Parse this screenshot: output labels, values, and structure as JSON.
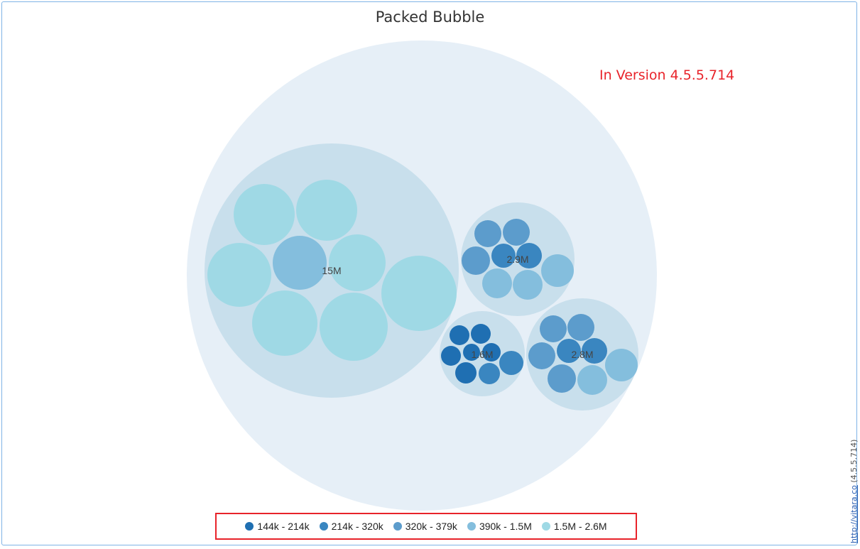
{
  "chart_data": {
    "type": "packed-bubble",
    "title": "Packed Bubble",
    "groups": [
      {
        "label": "15M",
        "members": [
          {
            "color_range": "1.5M - 2.6M"
          },
          {
            "color_range": "1.5M - 2.6M"
          },
          {
            "color_range": "1.5M - 2.6M"
          },
          {
            "color_range": "390k - 1.5M"
          },
          {
            "color_range": "1.5M - 2.6M"
          },
          {
            "color_range": "1.5M - 2.6M"
          },
          {
            "color_range": "1.5M - 2.6M"
          },
          {
            "color_range": "1.5M - 2.6M"
          }
        ]
      },
      {
        "label": "2.9M",
        "members": [
          {
            "color_range": "320k - 379k"
          },
          {
            "color_range": "320k - 379k"
          },
          {
            "color_range": "320k - 379k"
          },
          {
            "color_range": "214k - 320k"
          },
          {
            "color_range": "214k - 320k"
          },
          {
            "color_range": "390k - 1.5M"
          },
          {
            "color_range": "390k - 1.5M"
          },
          {
            "color_range": "390k - 1.5M"
          }
        ]
      },
      {
        "label": "1.6M",
        "members": [
          {
            "color_range": "144k - 214k"
          },
          {
            "color_range": "144k - 214k"
          },
          {
            "color_range": "144k - 214k"
          },
          {
            "color_range": "144k - 214k"
          },
          {
            "color_range": "144k - 214k"
          },
          {
            "color_range": "144k - 214k"
          },
          {
            "color_range": "214k - 320k"
          },
          {
            "color_range": "214k - 320k"
          }
        ]
      },
      {
        "label": "2.8M",
        "members": [
          {
            "color_range": "320k - 379k"
          },
          {
            "color_range": "320k - 379k"
          },
          {
            "color_range": "320k - 379k"
          },
          {
            "color_range": "214k - 320k"
          },
          {
            "color_range": "214k - 320k"
          },
          {
            "color_range": "320k - 379k"
          },
          {
            "color_range": "390k - 1.5M"
          },
          {
            "color_range": "390k - 1.5M"
          }
        ]
      }
    ],
    "legend": [
      {
        "label": "144k - 214k",
        "color": "#1f6fb2"
      },
      {
        "label": "214k - 320k",
        "color": "#3a86c0"
      },
      {
        "label": "320k - 379k",
        "color": "#5c9ccc"
      },
      {
        "label": "390k - 1.5M",
        "color": "#84bedd"
      },
      {
        "label": "1.5M - 2.6M",
        "color": "#9fd9e5"
      }
    ],
    "legend_position": "bottom-center"
  },
  "annotation": "In Version 4.5.5.714",
  "credit": {
    "link": "http://vitara.co",
    "version": "(4.5.5.714)"
  },
  "colors": {
    "outer": "#e6eff7",
    "group": "#c8dfec",
    "highlight": "#e8232a"
  }
}
